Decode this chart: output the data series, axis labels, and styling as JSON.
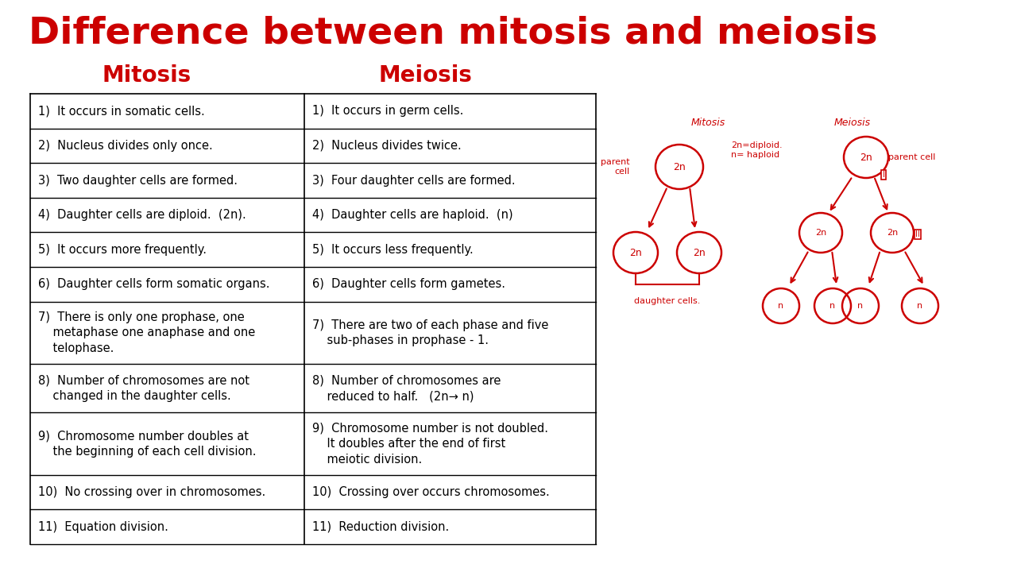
{
  "title": "Difference between mitosis and meiosis",
  "title_color": "#cc0000",
  "title_fontsize": 34,
  "bg_color": "#ffffff",
  "col1_header": "Mitosis",
  "col2_header": "Meiosis",
  "header_color": "#cc0000",
  "header_fontsize": 20,
  "text_color": "#000000",
  "text_fontsize": 10.5,
  "red": "#cc0000",
  "mitosis_rows": [
    "1)  It occurs in somatic cells.",
    "2)  Nucleus divides only once.",
    "3)  Two daughter cells are formed.",
    "4)  Daughter cells are diploid.  (2n).",
    "5)  It occurs more frequently.",
    "6)  Daughter cells form somatic organs.",
    "7)  There is only one prophase, one\n    metaphase one anaphase and one\n    telophase.",
    "8)  Number of chromosomes are not\n    changed in the daughter cells.",
    "9)  Chromosome number doubles at\n    the beginning of each cell division.",
    "10)  No crossing over in chromosomes.",
    "11)  Equation division."
  ],
  "meiosis_rows": [
    "1)  It occurs in germ cells.",
    "2)  Nucleus divides twice.",
    "3)  Four daughter cells are formed.",
    "4)  Daughter cells are haploid.  (n)",
    "5)  It occurs less frequently.",
    "6)  Daughter cells form gametes.",
    "7)  There are two of each phase and five\n    sub-phases in prophase - 1.",
    "8)  Number of chromosomes are\n    reduced to half.   (2n→ n)",
    "9)  Chromosome number is not doubled.\n    It doubles after the end of first\n    meiotic division.",
    "10)  Crossing over occurs chromosomes.",
    "11)  Reduction division."
  ],
  "row_heights": [
    1.0,
    1.0,
    1.0,
    1.0,
    1.0,
    1.0,
    1.8,
    1.4,
    1.8,
    1.0,
    1.0
  ]
}
